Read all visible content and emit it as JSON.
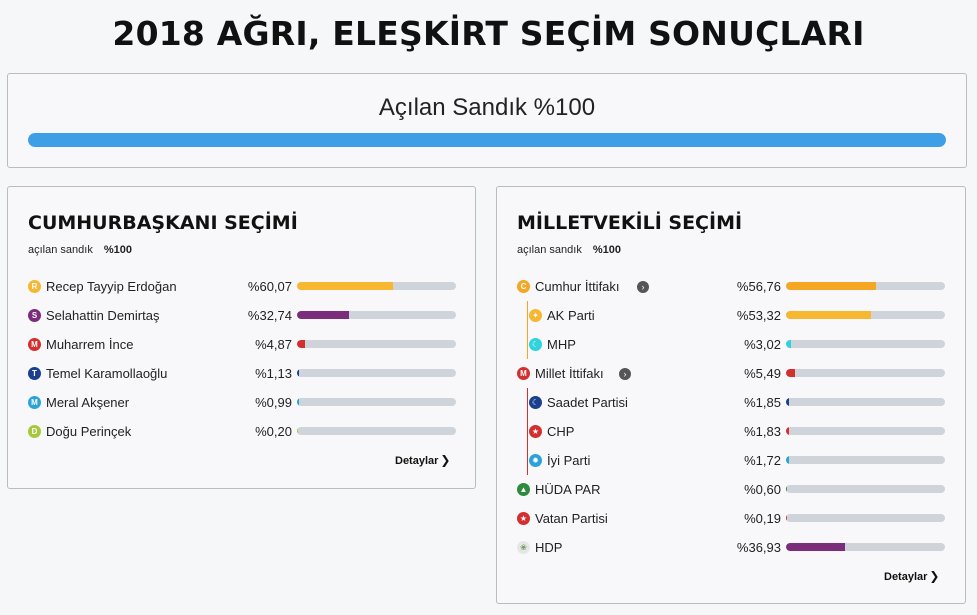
{
  "page": {
    "title": "2018 AĞRI, ELEŞKİRT SEÇİM SONUÇLARI"
  },
  "ballot": {
    "label": "Açılan Sandık %100",
    "percent": 100,
    "color": "#3f9fe6"
  },
  "president": {
    "title": "CUMHURBAŞKANI SEÇİMİ",
    "sub_label": "açılan sandık",
    "sub_value": "%100",
    "details": "Detaylar",
    "candidates": [
      {
        "letter": "R",
        "name": "Recep Tayyip Erdoğan",
        "pct": "%60,07",
        "value": 60.07,
        "color": "#f7b731"
      },
      {
        "letter": "S",
        "name": "Selahattin Demirtaş",
        "pct": "%32,74",
        "value": 32.74,
        "color": "#7b2d7b"
      },
      {
        "letter": "M",
        "name": "Muharrem İnce",
        "pct": "%4,87",
        "value": 4.87,
        "color": "#d32f2f"
      },
      {
        "letter": "T",
        "name": "Temel Karamollaoğlu",
        "pct": "%1,13",
        "value": 1.13,
        "color": "#1a3f8f"
      },
      {
        "letter": "M",
        "name": "Meral Akşener",
        "pct": "%0,99",
        "value": 0.99,
        "color": "#2ba3d9"
      },
      {
        "letter": "D",
        "name": "Doğu Perinçek",
        "pct": "%0,20",
        "value": 0.2,
        "color": "#a5c93a"
      }
    ]
  },
  "parliament": {
    "title": "MİLLETVEKİLİ SEÇİMİ",
    "sub_label": "açılan sandık",
    "sub_value": "%100",
    "details": "Detaylar",
    "parties": [
      {
        "id": "cumhur",
        "name": "Cumhur İttifakı",
        "pct": "%56,76",
        "value": 56.76,
        "color": "#f5a623",
        "icon": "C",
        "level": 0,
        "expand": true
      },
      {
        "id": "akp",
        "name": "AK Parti",
        "pct": "%53,32",
        "value": 53.32,
        "color": "#f7b731",
        "icon": "bulb-icon",
        "level": 1,
        "line_color": "#f5a623"
      },
      {
        "id": "mhp",
        "name": "MHP",
        "pct": "%3,02",
        "value": 3.02,
        "color": "#2fd3dc",
        "icon": "crescent-icon",
        "level": 1,
        "line_color": "#f5a623"
      },
      {
        "id": "millet",
        "name": "Millet İttifakı",
        "pct": "%5,49",
        "value": 5.49,
        "color": "#d32f2f",
        "icon": "M",
        "level": 0,
        "expand": true
      },
      {
        "id": "saadet",
        "name": "Saadet Partisi",
        "pct": "%1,85",
        "value": 1.85,
        "color": "#1a3f8f",
        "icon": "moon-icon",
        "level": 1,
        "line_color": "#d32f2f"
      },
      {
        "id": "chp",
        "name": "CHP",
        "pct": "%1,83",
        "value": 1.83,
        "color": "#d32f2f",
        "icon": "arrows-icon",
        "level": 1,
        "line_color": "#d32f2f"
      },
      {
        "id": "iyi",
        "name": "İyi Parti",
        "pct": "%1,72",
        "value": 1.72,
        "color": "#2ba3d9",
        "icon": "sun-icon",
        "level": 1,
        "line_color": "#d32f2f"
      },
      {
        "id": "huda",
        "name": "HÜDA PAR",
        "pct": "%0,60",
        "value": 0.6,
        "color": "#2e8b3e",
        "icon": "dome-icon",
        "level": 0
      },
      {
        "id": "vatan",
        "name": "Vatan Partisi",
        "pct": "%0,19",
        "value": 0.19,
        "color": "#d32f2f",
        "icon": "star-icon",
        "level": 0
      },
      {
        "id": "hdp",
        "name": "HDP",
        "pct": "%36,93",
        "value": 36.93,
        "color": "#7b2d7b",
        "icon": "tree-icon",
        "level": 0
      }
    ]
  }
}
